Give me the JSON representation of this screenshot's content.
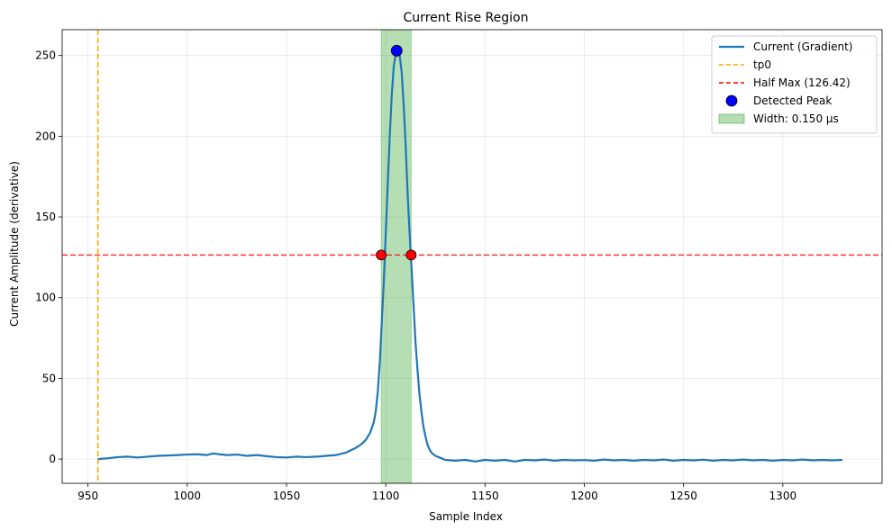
{
  "chart_data": {
    "type": "line",
    "title": "Current Rise Region",
    "xlabel": "Sample Index",
    "ylabel": "Current Amplitude (derivative)",
    "xlim": [
      937,
      1350
    ],
    "ylim": [
      -15,
      266
    ],
    "xticks": [
      950,
      1000,
      1050,
      1100,
      1150,
      1200,
      1250,
      1300
    ],
    "yticks": [
      0,
      50,
      100,
      150,
      200,
      250
    ],
    "grid": true,
    "legend_position": "top-right",
    "series": [
      {
        "name": "Current (Gradient)",
        "color": "#1f77b4",
        "x": [
          955,
          960,
          965,
          970,
          975,
          980,
          985,
          990,
          995,
          1000,
          1005,
          1010,
          1013,
          1016,
          1020,
          1025,
          1030,
          1035,
          1040,
          1045,
          1050,
          1055,
          1060,
          1065,
          1070,
          1075,
          1080,
          1085,
          1088,
          1090,
          1092,
          1094,
          1095,
          1096,
          1097,
          1098,
          1099,
          1100,
          1101,
          1102,
          1103,
          1104,
          1105,
          1106,
          1107,
          1108,
          1109,
          1110,
          1111,
          1112,
          1113,
          1114,
          1115,
          1116,
          1117,
          1118,
          1119,
          1120,
          1121,
          1122,
          1123,
          1125,
          1128,
          1130,
          1135,
          1140,
          1145,
          1150,
          1155,
          1160,
          1165,
          1170,
          1175,
          1180,
          1185,
          1190,
          1195,
          1200,
          1205,
          1210,
          1215,
          1220,
          1225,
          1230,
          1235,
          1240,
          1245,
          1250,
          1255,
          1260,
          1265,
          1270,
          1275,
          1280,
          1285,
          1290,
          1295,
          1300,
          1305,
          1310,
          1315,
          1320,
          1325,
          1330
        ],
        "y": [
          0,
          0.5,
          1.2,
          1.5,
          1.0,
          1.5,
          2.0,
          2.2,
          2.5,
          2.8,
          3.0,
          2.5,
          3.5,
          3.0,
          2.5,
          2.8,
          2.0,
          2.5,
          1.8,
          1.2,
          1.0,
          1.5,
          1.2,
          1.5,
          2.0,
          2.5,
          4.0,
          7.0,
          9.5,
          12,
          16,
          23,
          30,
          42,
          60,
          85,
          110,
          140,
          170,
          200,
          225,
          243,
          251,
          253,
          250,
          240,
          220,
          195,
          165,
          140,
          118,
          95,
          72,
          55,
          40,
          29,
          20,
          14,
          9,
          6,
          4,
          2,
          0.5,
          -0.5,
          -1,
          -0.5,
          -1.5,
          -0.5,
          -1,
          -0.5,
          -1.5,
          -0.5,
          -0.8,
          -0.3,
          -1,
          -0.5,
          -0.8,
          -0.6,
          -1,
          -0.3,
          -0.8,
          -0.5,
          -1,
          -0.5,
          -0.8,
          -0.3,
          -1,
          -0.5,
          -0.8,
          -0.4,
          -1,
          -0.5,
          -0.8,
          -0.3,
          -0.8,
          -0.5,
          -1,
          -0.5,
          -0.8,
          -0.3,
          -0.8,
          -0.5,
          -0.8,
          -0.5
        ]
      }
    ],
    "tp0": {
      "name": "tp0",
      "x": 955,
      "color": "#ffa500"
    },
    "half_max": {
      "name": "Half Max (126.42)",
      "y": 126.42,
      "color": "#ff0000"
    },
    "peak": {
      "name": "Detected Peak",
      "x": 1105.5,
      "y": 253,
      "color": "#0000ff"
    },
    "half_max_points": [
      {
        "x": 1097.7,
        "y": 126.42,
        "color": "#ff0000"
      },
      {
        "x": 1112.8,
        "y": 126.42,
        "color": "#ff0000"
      }
    ],
    "width_band": {
      "name": "Width: 0.150 µs",
      "x0": 1097.7,
      "x1": 1112.8,
      "color": "#2ca02c"
    }
  }
}
